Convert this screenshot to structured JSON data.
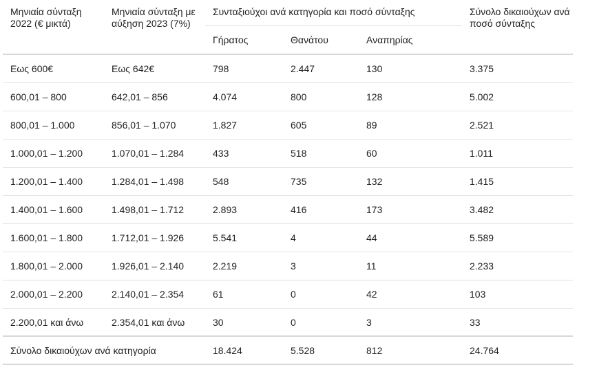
{
  "header": {
    "col1": "Μηνιαία σύνταξη 2022 (€ μικτά)",
    "col2": "Μηνιαία σύνταξη με αύξηση 2023 (7%)",
    "group": "Συνταξιούχοι ανά κατηγορία και ποσό σύνταξης",
    "sub1": "Γήρατος",
    "sub2": "Θανάτου",
    "sub3": "Αναπηρίας",
    "col6": "Σύνολο δικαιούχων ανά ποσό σύνταξης"
  },
  "rows": [
    [
      "Εως 600€",
      "Εως 642€",
      "798",
      "2.447",
      "130",
      "3.375"
    ],
    [
      "600,01 – 800",
      "642,01 – 856",
      "4.074",
      "800",
      "128",
      "5.002"
    ],
    [
      "800,01 – 1.000",
      "856,01 – 1.070",
      "1.827",
      "605",
      "89",
      "2.521"
    ],
    [
      "1.000,01 – 1.200",
      "1.070,01 – 1.284",
      "433",
      "518",
      "60",
      "1.011"
    ],
    [
      "1.200,01 – 1.400",
      "1.284,01 – 1.498",
      "548",
      "735",
      "132",
      "1.415"
    ],
    [
      "1.400,01 – 1.600",
      "1.498,01 – 1.712",
      "2.893",
      "416",
      "173",
      "3.482"
    ],
    [
      "1.600,01 – 1.800",
      "1.712,01 – 1.926",
      "5.541",
      "4",
      "44",
      "5.589"
    ],
    [
      "1.800,01 – 2.000",
      "1.926,01 – 2.140",
      "2.219",
      "3",
      "11",
      "2.233"
    ],
    [
      "2.000,01 – 2.200",
      "2.140,01 – 2.354",
      "61",
      "0",
      "42",
      "103"
    ],
    [
      "2.200,01 και άνω",
      "2.354,01 και άνω",
      "30",
      "0",
      "3",
      "33"
    ]
  ],
  "totals": {
    "label": "Σύνολο δικαιούχων ανά κατηγορία",
    "values": [
      "18.424",
      "5.528",
      "812",
      "24.764"
    ]
  }
}
